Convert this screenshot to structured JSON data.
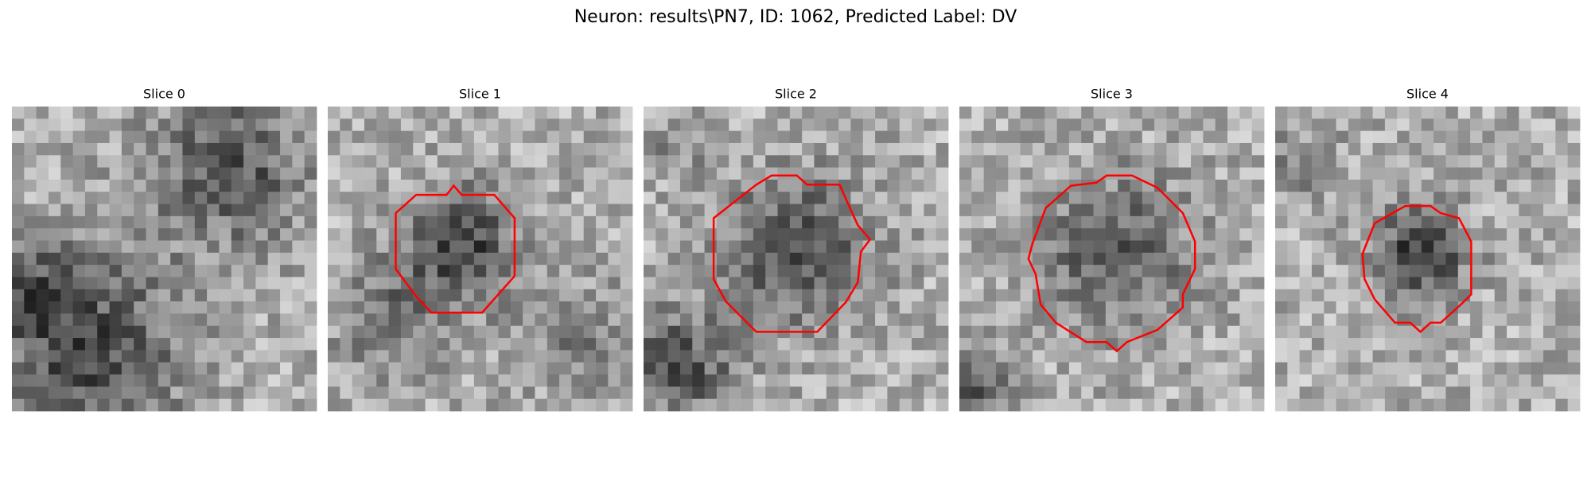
{
  "title": "Neuron: results\\PN7, ID: 1062, Predicted Label: DV",
  "panels": [
    {
      "title": "Slice 0"
    },
    {
      "title": "Slice 1"
    },
    {
      "title": "Slice 2"
    },
    {
      "title": "Slice 3"
    },
    {
      "title": "Slice 4"
    }
  ]
}
